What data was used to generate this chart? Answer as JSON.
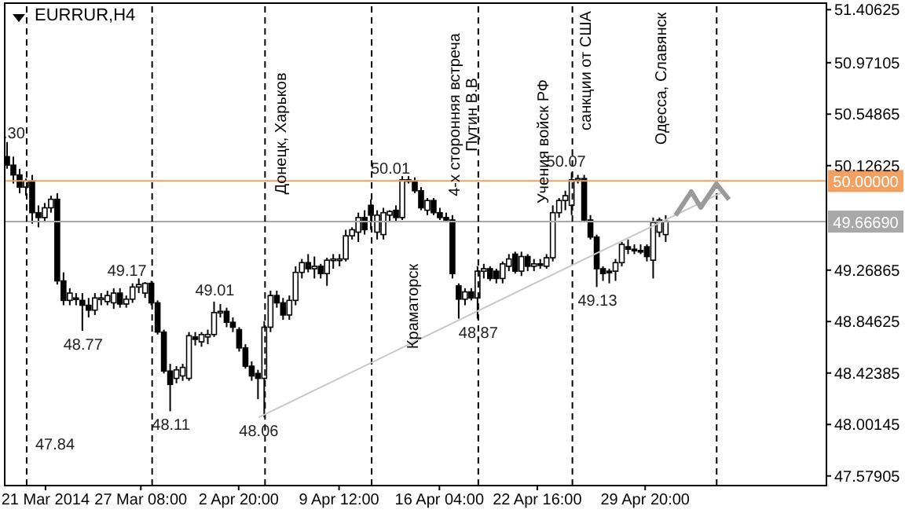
{
  "chart_data": {
    "type": "candlestick",
    "title": "EURRUR,H4",
    "color": "#000000",
    "x": [
      "2014-03-18T12:00",
      "2014-03-18T22:00",
      "2014-03-19T08:00",
      "2014-03-19T18:00",
      "2014-03-20T04:00",
      "2014-03-20T14:00",
      "2014-03-21T00:00",
      "2014-03-21T10:00",
      "2014-03-21T20:00",
      "2014-03-22T06:00",
      "2014-03-22T16:00",
      "2014-03-23T02:00",
      "2014-03-23T12:00",
      "2014-03-23T22:00",
      "2014-03-24T08:00",
      "2014-03-24T18:00",
      "2014-03-25T04:00",
      "2014-03-25T14:00",
      "2014-03-26T00:00",
      "2014-03-26T10:00",
      "2014-03-26T20:00",
      "2014-03-27T06:00",
      "2014-03-27T16:00",
      "2014-03-28T02:00",
      "2014-03-28T12:00",
      "2014-03-28T22:00",
      "2014-03-29T08:00",
      "2014-03-29T18:00",
      "2014-03-30T04:00",
      "2014-03-30T14:00",
      "2014-03-31T00:00",
      "2014-03-31T10:00",
      "2014-03-31T20:00",
      "2014-04-01T06:00",
      "2014-04-01T16:00",
      "2014-04-02T02:00",
      "2014-04-02T12:00",
      "2014-04-02T22:00",
      "2014-04-03T08:00",
      "2014-04-03T18:00",
      "2014-04-04T04:00",
      "2014-04-04T14:00",
      "2014-04-05T00:00",
      "2014-04-05T10:00",
      "2014-04-05T20:00",
      "2014-04-06T06:00",
      "2014-04-06T16:00",
      "2014-04-07T02:00",
      "2014-04-07T12:00",
      "2014-04-07T22:00",
      "2014-04-08T08:00",
      "2014-04-08T18:00",
      "2014-04-09T04:00",
      "2014-04-09T14:00",
      "2014-04-10T00:00",
      "2014-04-10T10:00",
      "2014-04-10T20:00",
      "2014-04-11T06:00",
      "2014-04-11T16:00",
      "2014-04-12T02:00",
      "2014-04-12T12:00",
      "2014-04-12T22:00",
      "2014-04-13T08:00",
      "2014-04-13T18:00",
      "2014-04-14T04:00",
      "2014-04-14T14:00",
      "2014-04-15T00:00",
      "2014-04-15T10:00",
      "2014-04-15T20:00",
      "2014-04-16T06:00",
      "2014-04-16T16:00",
      "2014-04-17T02:00",
      "2014-04-17T12:00",
      "2014-04-17T22:00",
      "2014-04-18T08:00",
      "2014-04-18T18:00",
      "2014-04-19T04:00",
      "2014-04-19T14:00",
      "2014-04-20T00:00",
      "2014-04-20T10:00",
      "2014-04-20T20:00",
      "2014-04-21T06:00",
      "2014-04-21T16:00",
      "2014-04-22T02:00",
      "2014-04-22T12:00",
      "2014-04-22T22:00",
      "2014-04-23T08:00",
      "2014-04-23T18:00",
      "2014-04-24T04:00",
      "2014-04-24T14:00",
      "2014-04-25T00:00",
      "2014-04-25T10:00",
      "2014-04-25T20:00",
      "2014-04-26T06:00",
      "2014-04-26T16:00",
      "2014-04-27T02:00",
      "2014-04-27T12:00",
      "2014-04-27T22:00",
      "2014-04-28T08:00",
      "2014-04-28T18:00",
      "2014-04-29T04:00",
      "2014-04-29T14:00",
      "2014-04-30T00:00",
      "2014-04-30T10:00",
      "2014-04-30T20:00",
      "2014-05-01T06:00"
    ],
    "ohlc": [
      [
        50.2,
        50.32,
        50.1,
        50.13
      ],
      [
        50.13,
        50.2,
        49.98,
        50.05
      ],
      [
        50.05,
        50.1,
        49.9,
        49.95
      ],
      [
        49.95,
        50.02,
        49.88,
        50.0
      ],
      [
        50.0,
        50.05,
        49.65,
        49.74
      ],
      [
        49.74,
        49.8,
        49.62,
        49.7
      ],
      [
        49.7,
        49.82,
        49.66,
        49.78
      ],
      [
        49.78,
        49.88,
        49.74,
        49.85
      ],
      [
        49.85,
        49.9,
        49.15,
        49.18
      ],
      [
        49.18,
        49.25,
        48.98,
        49.02
      ],
      [
        49.02,
        49.12,
        48.98,
        49.08
      ],
      [
        49.04,
        49.08,
        48.98,
        49.03
      ],
      [
        49.02,
        49.08,
        48.77,
        48.98
      ],
      [
        48.98,
        49.04,
        48.88,
        48.94
      ],
      [
        48.94,
        49.08,
        48.9,
        49.04
      ],
      [
        49.03,
        49.08,
        48.98,
        49.04
      ],
      [
        49.01,
        49.1,
        48.98,
        49.06
      ],
      [
        49.0,
        49.12,
        48.95,
        49.08
      ],
      [
        49.08,
        49.12,
        48.96,
        48.99
      ],
      [
        48.99,
        49.06,
        48.96,
        49.03
      ],
      [
        49.03,
        49.16,
        49.0,
        49.13
      ],
      [
        49.13,
        49.2,
        49.08,
        49.15
      ],
      [
        49.08,
        49.17,
        49.04,
        49.16
      ],
      [
        49.16,
        49.18,
        48.98,
        49.0
      ],
      [
        49.0,
        49.02,
        48.74,
        48.76
      ],
      [
        48.76,
        48.78,
        48.42,
        48.44
      ],
      [
        48.44,
        48.5,
        48.11,
        48.33
      ],
      [
        48.38,
        48.48,
        48.34,
        48.45
      ],
      [
        48.4,
        48.5,
        48.36,
        48.47
      ],
      [
        48.38,
        48.76,
        48.36,
        48.73
      ],
      [
        48.72,
        48.76,
        48.65,
        48.7
      ],
      [
        48.68,
        48.76,
        48.64,
        48.74
      ],
      [
        48.72,
        48.78,
        48.66,
        48.74
      ],
      [
        48.74,
        49.01,
        48.72,
        48.92
      ],
      [
        48.92,
        48.99,
        48.88,
        48.93
      ],
      [
        48.93,
        48.96,
        48.8,
        48.84
      ],
      [
        48.84,
        48.88,
        48.76,
        48.8
      ],
      [
        48.78,
        48.8,
        48.6,
        48.63
      ],
      [
        48.63,
        48.66,
        48.46,
        48.48
      ],
      [
        48.48,
        48.52,
        48.36,
        48.4
      ],
      [
        48.42,
        48.45,
        48.21,
        48.38
      ],
      [
        48.38,
        48.85,
        48.06,
        48.8
      ],
      [
        48.8,
        49.1,
        48.76,
        49.06
      ],
      [
        49.06,
        49.1,
        48.96,
        49.0
      ],
      [
        49.0,
        49.04,
        48.86,
        48.9
      ],
      [
        48.9,
        49.06,
        48.86,
        49.02
      ],
      [
        49.02,
        49.3,
        48.98,
        49.25
      ],
      [
        49.25,
        49.36,
        49.2,
        49.33
      ],
      [
        49.33,
        49.4,
        49.25,
        49.28
      ],
      [
        49.28,
        49.38,
        49.2,
        49.3
      ],
      [
        49.3,
        49.32,
        49.2,
        49.24
      ],
      [
        49.24,
        49.37,
        49.14,
        49.35
      ],
      [
        49.35,
        49.4,
        49.28,
        49.36
      ],
      [
        49.36,
        49.4,
        49.3,
        49.36
      ],
      [
        49.36,
        49.6,
        49.34,
        49.55
      ],
      [
        49.55,
        49.62,
        49.52,
        49.6
      ],
      [
        49.58,
        49.74,
        49.5,
        49.7
      ],
      [
        49.7,
        49.76,
        49.56,
        49.6
      ],
      [
        49.8,
        49.85,
        49.6,
        49.72
      ],
      [
        49.58,
        49.76,
        49.52,
        49.72
      ],
      [
        49.56,
        49.78,
        49.52,
        49.74
      ],
      [
        49.72,
        49.76,
        49.66,
        49.75
      ],
      [
        49.76,
        49.8,
        49.66,
        49.7
      ],
      [
        49.7,
        50.04,
        49.68,
        50.01
      ],
      [
        50.01,
        50.04,
        49.98,
        50.0
      ],
      [
        50.0,
        50.03,
        49.9,
        49.92
      ],
      [
        49.92,
        49.95,
        49.76,
        49.78
      ],
      [
        49.76,
        49.86,
        49.72,
        49.84
      ],
      [
        49.84,
        49.86,
        49.72,
        49.74
      ],
      [
        49.74,
        49.78,
        49.68,
        49.7
      ],
      [
        49.7,
        49.74,
        49.66,
        49.68
      ],
      [
        49.68,
        49.72,
        49.2,
        49.24
      ],
      [
        49.14,
        49.16,
        48.87,
        49.03
      ],
      [
        49.03,
        49.12,
        48.98,
        49.09
      ],
      [
        49.09,
        49.12,
        49.02,
        49.04
      ],
      [
        49.04,
        49.3,
        48.87,
        49.26
      ],
      [
        49.26,
        49.32,
        49.2,
        49.28
      ],
      [
        49.28,
        49.3,
        49.18,
        49.2
      ],
      [
        49.26,
        49.28,
        49.16,
        49.2
      ],
      [
        49.2,
        49.34,
        49.16,
        49.32
      ],
      [
        49.3,
        49.4,
        49.26,
        49.36
      ],
      [
        49.4,
        49.42,
        49.24,
        49.26
      ],
      [
        49.26,
        49.42,
        49.22,
        49.38
      ],
      [
        49.38,
        49.4,
        49.26,
        49.3
      ],
      [
        49.3,
        49.36,
        49.26,
        49.32
      ],
      [
        49.32,
        49.36,
        49.28,
        49.31
      ],
      [
        49.3,
        49.4,
        49.28,
        49.37
      ],
      [
        49.37,
        49.8,
        49.34,
        49.74
      ],
      [
        49.74,
        49.86,
        49.7,
        49.84
      ],
      [
        49.84,
        49.92,
        49.76,
        49.88
      ],
      [
        49.8,
        50.07,
        49.72,
        50.01
      ],
      [
        50.01,
        50.05,
        49.98,
        50.02
      ],
      [
        50.02,
        50.05,
        49.66,
        49.68
      ],
      [
        49.68,
        49.72,
        49.52,
        49.54
      ],
      [
        49.54,
        49.56,
        49.13,
        49.28
      ],
      [
        49.28,
        49.3,
        49.18,
        49.24
      ],
      [
        49.26,
        49.28,
        49.16,
        49.25
      ],
      [
        49.26,
        49.36,
        49.18,
        49.33
      ],
      [
        49.33,
        49.5,
        49.3,
        49.48
      ],
      [
        49.46,
        49.52,
        49.4,
        49.44
      ],
      [
        49.44,
        49.48,
        49.4,
        49.43
      ],
      [
        49.43,
        49.48,
        49.4,
        49.42
      ],
      [
        49.46,
        49.48,
        49.34,
        49.38
      ],
      [
        49.35,
        49.7,
        49.2,
        49.66
      ],
      [
        49.58,
        49.7,
        49.54,
        49.68
      ],
      [
        49.56,
        49.72,
        49.5,
        49.67
      ]
    ],
    "xlim": [
      "2014-03-18T07:00",
      "2014-05-11T21:00"
    ],
    "xticks": [
      {
        "value": "2014-03-21",
        "label": "21 Mar 2014"
      },
      {
        "value": "2014-03-27T08:00",
        "label": "27 Mar 08:00"
      },
      {
        "value": "2014-04-02T20:00",
        "label": "2 Apr 20:00"
      },
      {
        "value": "2014-04-09T12:00",
        "label": "9 Apr 12:00"
      },
      {
        "value": "2014-04-16T04:00",
        "label": "16 Apr 04:00"
      },
      {
        "value": "2014-04-22T16:00",
        "label": "22 Apr 16:00"
      },
      {
        "value": "2014-04-29T20:00",
        "label": "29 Apr 20:00"
      }
    ],
    "ylim": [
      47.5,
      51.46
    ],
    "yticks": [
      51.40625,
      50.97105,
      50.54865,
      50.12625,
      49.26865,
      48.84625,
      48.42385,
      48.00145,
      47.57905
    ],
    "series": [
      {
        "type": "line",
        "x": [
          "2014-04-04T04:00",
          "2014-05-05T00:00"
        ],
        "values": [
          48.06,
          49.91
        ],
        "color": "#c8c8c8"
      }
    ],
    "ref_lines": [
      {
        "axis": "y",
        "value": 50.0,
        "label": "50.00000",
        "color": "#f0a060"
      },
      {
        "axis": "y",
        "value": 49.6669,
        "label": "49.66690",
        "color": "#a8a8a8"
      },
      {
        "axis": "x",
        "value": "2014-03-19T18:00",
        "color": "#000000",
        "line_style": "dashed"
      },
      {
        "axis": "x",
        "value": "2014-03-28T02:00",
        "color": "#000000",
        "line_style": "dashed"
      },
      {
        "axis": "x",
        "value": "2014-04-04T14:00",
        "color": "#000000",
        "line_style": "dashed"
      },
      {
        "axis": "x",
        "value": "2014-04-11T16:00",
        "color": "#000000",
        "line_style": "dashed"
      },
      {
        "axis": "x",
        "value": "2014-04-18T18:00",
        "color": "#000000",
        "line_style": "dashed"
      },
      {
        "axis": "x",
        "value": "2014-04-25T00:00",
        "color": "#000000",
        "line_style": "dashed"
      },
      {
        "axis": "x",
        "value": "2014-05-04T14:00",
        "color": "#000000",
        "line_style": "dashed"
      }
    ],
    "annotations": [
      {
        "text": ".30",
        "x": "2014-03-18T22:00",
        "y": 50.3
      },
      {
        "text": "49.17",
        "x": "2014-03-26T10:00",
        "y": 49.17
      },
      {
        "text": "48.77",
        "x": "2014-03-23T12:00",
        "y": 48.77
      },
      {
        "text": "48.11",
        "x": "2014-03-29T08:00",
        "y": 48.11
      },
      {
        "text": "49.01",
        "x": "2014-04-01T06:00",
        "y": 49.01
      },
      {
        "text": "48.06",
        "x": "2014-04-04T04:00",
        "y": 48.06
      },
      {
        "text": "50.01",
        "x": "2014-04-12T22:00",
        "y": 50.01
      },
      {
        "text": "48.87",
        "x": "2014-04-18T18:00",
        "y": 48.87
      },
      {
        "text": "50.07",
        "x": "2014-04-24T14:00",
        "y": 50.07
      },
      {
        "text": "49.13",
        "x": "2014-04-26T16:00",
        "y": 49.13
      },
      "47.84",
      "Донецк, Харьков",
      "Краматорск",
      "4-х сторонняя встреча Путин В.В",
      "Учения войск РФ",
      "санкции от США",
      "Одесса, Славянск"
    ]
  }
}
